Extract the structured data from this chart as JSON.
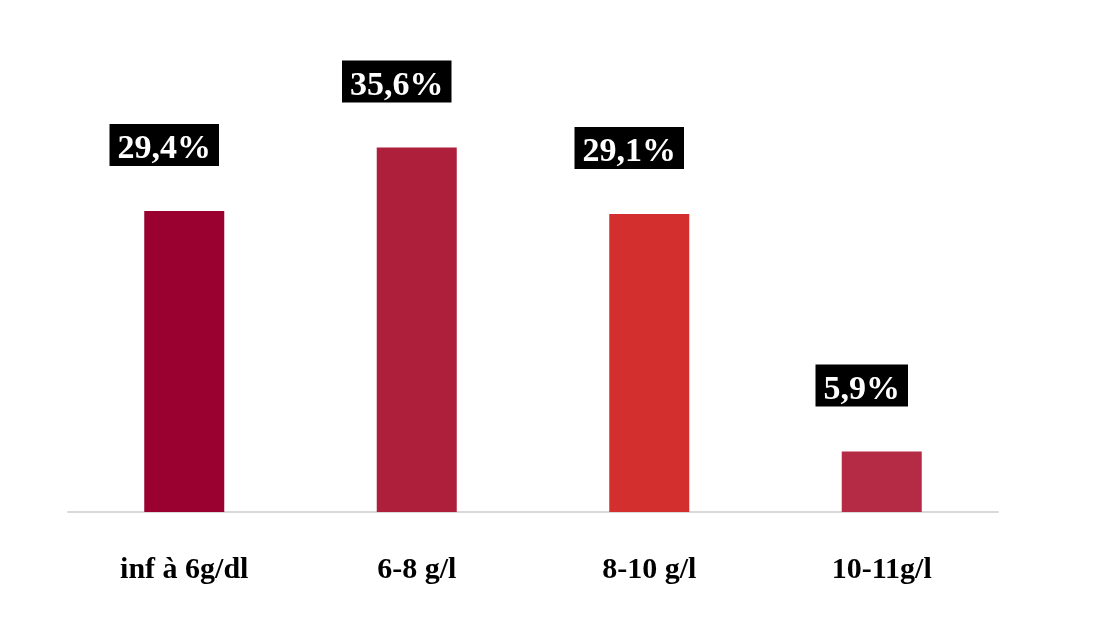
{
  "chart_data": {
    "type": "bar",
    "categories": [
      "inf à 6g/dl",
      "6-8 g/l",
      "8-10 g/l",
      "10-11g/l"
    ],
    "values": [
      29.4,
      35.6,
      29.1,
      5.9
    ],
    "colors": [
      "#9a0030",
      "#ad1f3a",
      "#d32f2f",
      "#b52a45"
    ],
    "value_labels": [
      "29,4%",
      "35,6%",
      "29,1%",
      "5,9%"
    ]
  }
}
